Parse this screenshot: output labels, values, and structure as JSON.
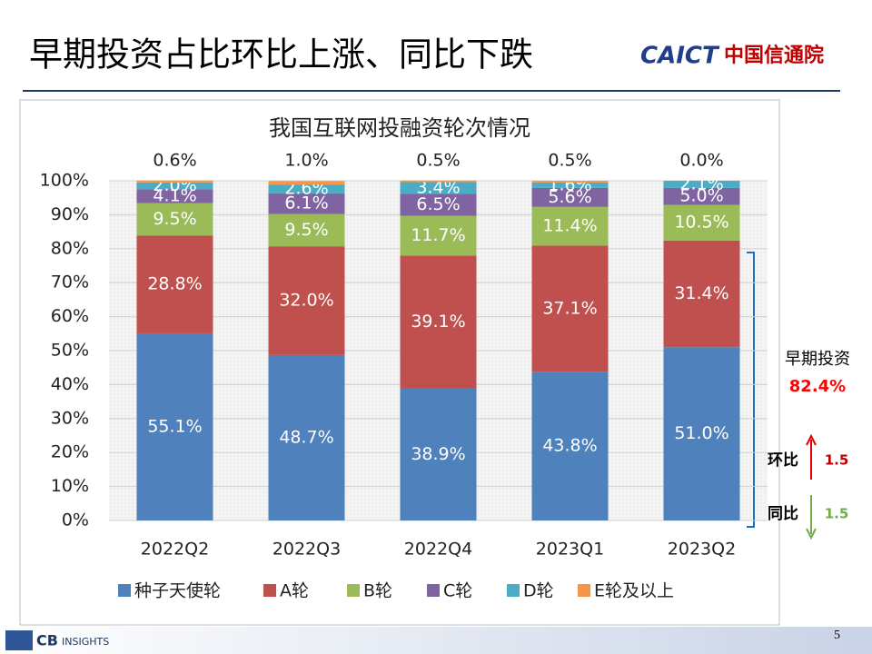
{
  "header": {
    "title": "早期投资占比环比上涨、同比下跌",
    "logo_text": "CAICT",
    "logo_cn": "中国信通院"
  },
  "footer": {
    "source_a": "CB",
    "source_b": "INSIGHTS",
    "page": "5"
  },
  "chart_data": {
    "type": "stacked_bar",
    "title": "我国互联网投融资轮次情况",
    "categories": [
      "2022Q2",
      "2022Q3",
      "2022Q4",
      "2023Q1",
      "2023Q2"
    ],
    "series": [
      {
        "name": "种子天使轮",
        "color": "#4f81bd",
        "values": [
          55.1,
          48.7,
          38.9,
          43.8,
          51.0
        ],
        "value_labels": [
          "55.1%",
          "48.7%",
          "38.9%",
          "43.8%",
          "51.0%"
        ]
      },
      {
        "name": "A轮",
        "color": "#c0504d",
        "values": [
          28.8,
          32.0,
          39.1,
          37.1,
          31.4
        ],
        "value_labels": [
          "28.8%",
          "32.0%",
          "39.1%",
          "37.1%",
          "31.4%"
        ]
      },
      {
        "name": "B轮",
        "color": "#9bbb59",
        "values": [
          9.5,
          9.5,
          11.7,
          11.4,
          10.5
        ],
        "value_labels": [
          "9.5%",
          "9.5%",
          "11.7%",
          "11.4%",
          "10.5%"
        ]
      },
      {
        "name": "C轮",
        "color": "#8064a2",
        "values": [
          4.1,
          6.1,
          6.5,
          5.6,
          5.0
        ],
        "value_labels": [
          "4.1%",
          "6.1%",
          "6.5%",
          "5.6%",
          "5.0%"
        ]
      },
      {
        "name": "D轮",
        "color": "#4bacc6",
        "values": [
          2.0,
          2.6,
          3.4,
          1.6,
          2.1
        ],
        "value_labels": [
          "2.0%",
          "2.6%",
          "3.4%",
          "1.6%",
          "2.1%"
        ]
      },
      {
        "name": "E轮及以上",
        "color": "#f79646",
        "values": [
          0.6,
          1.0,
          0.5,
          0.5,
          0.0
        ],
        "value_labels": [
          "0.6%",
          "1.0%",
          "0.5%",
          "0.5%",
          "0.0%"
        ]
      }
    ],
    "ylim": [
      0,
      100
    ],
    "yticks": [
      {
        "value": 0,
        "label": "0%"
      },
      {
        "value": 10,
        "label": "10%"
      },
      {
        "value": 20,
        "label": "20%"
      },
      {
        "value": 30,
        "label": "30%"
      },
      {
        "value": 40,
        "label": "40%"
      },
      {
        "value": 50,
        "label": "50%"
      },
      {
        "value": 60,
        "label": "60%"
      },
      {
        "value": 70,
        "label": "70%"
      },
      {
        "value": 80,
        "label": "80%"
      },
      {
        "value": 90,
        "label": "90%"
      },
      {
        "value": 100,
        "label": "100%"
      }
    ],
    "grid": true,
    "legend": "bottom",
    "annotations": {
      "early": "早期投资",
      "early_value": "82.4%",
      "qoq": "环比",
      "qoq_value": "1.5",
      "yoy": "同比",
      "yoy_value": "1.5"
    }
  }
}
